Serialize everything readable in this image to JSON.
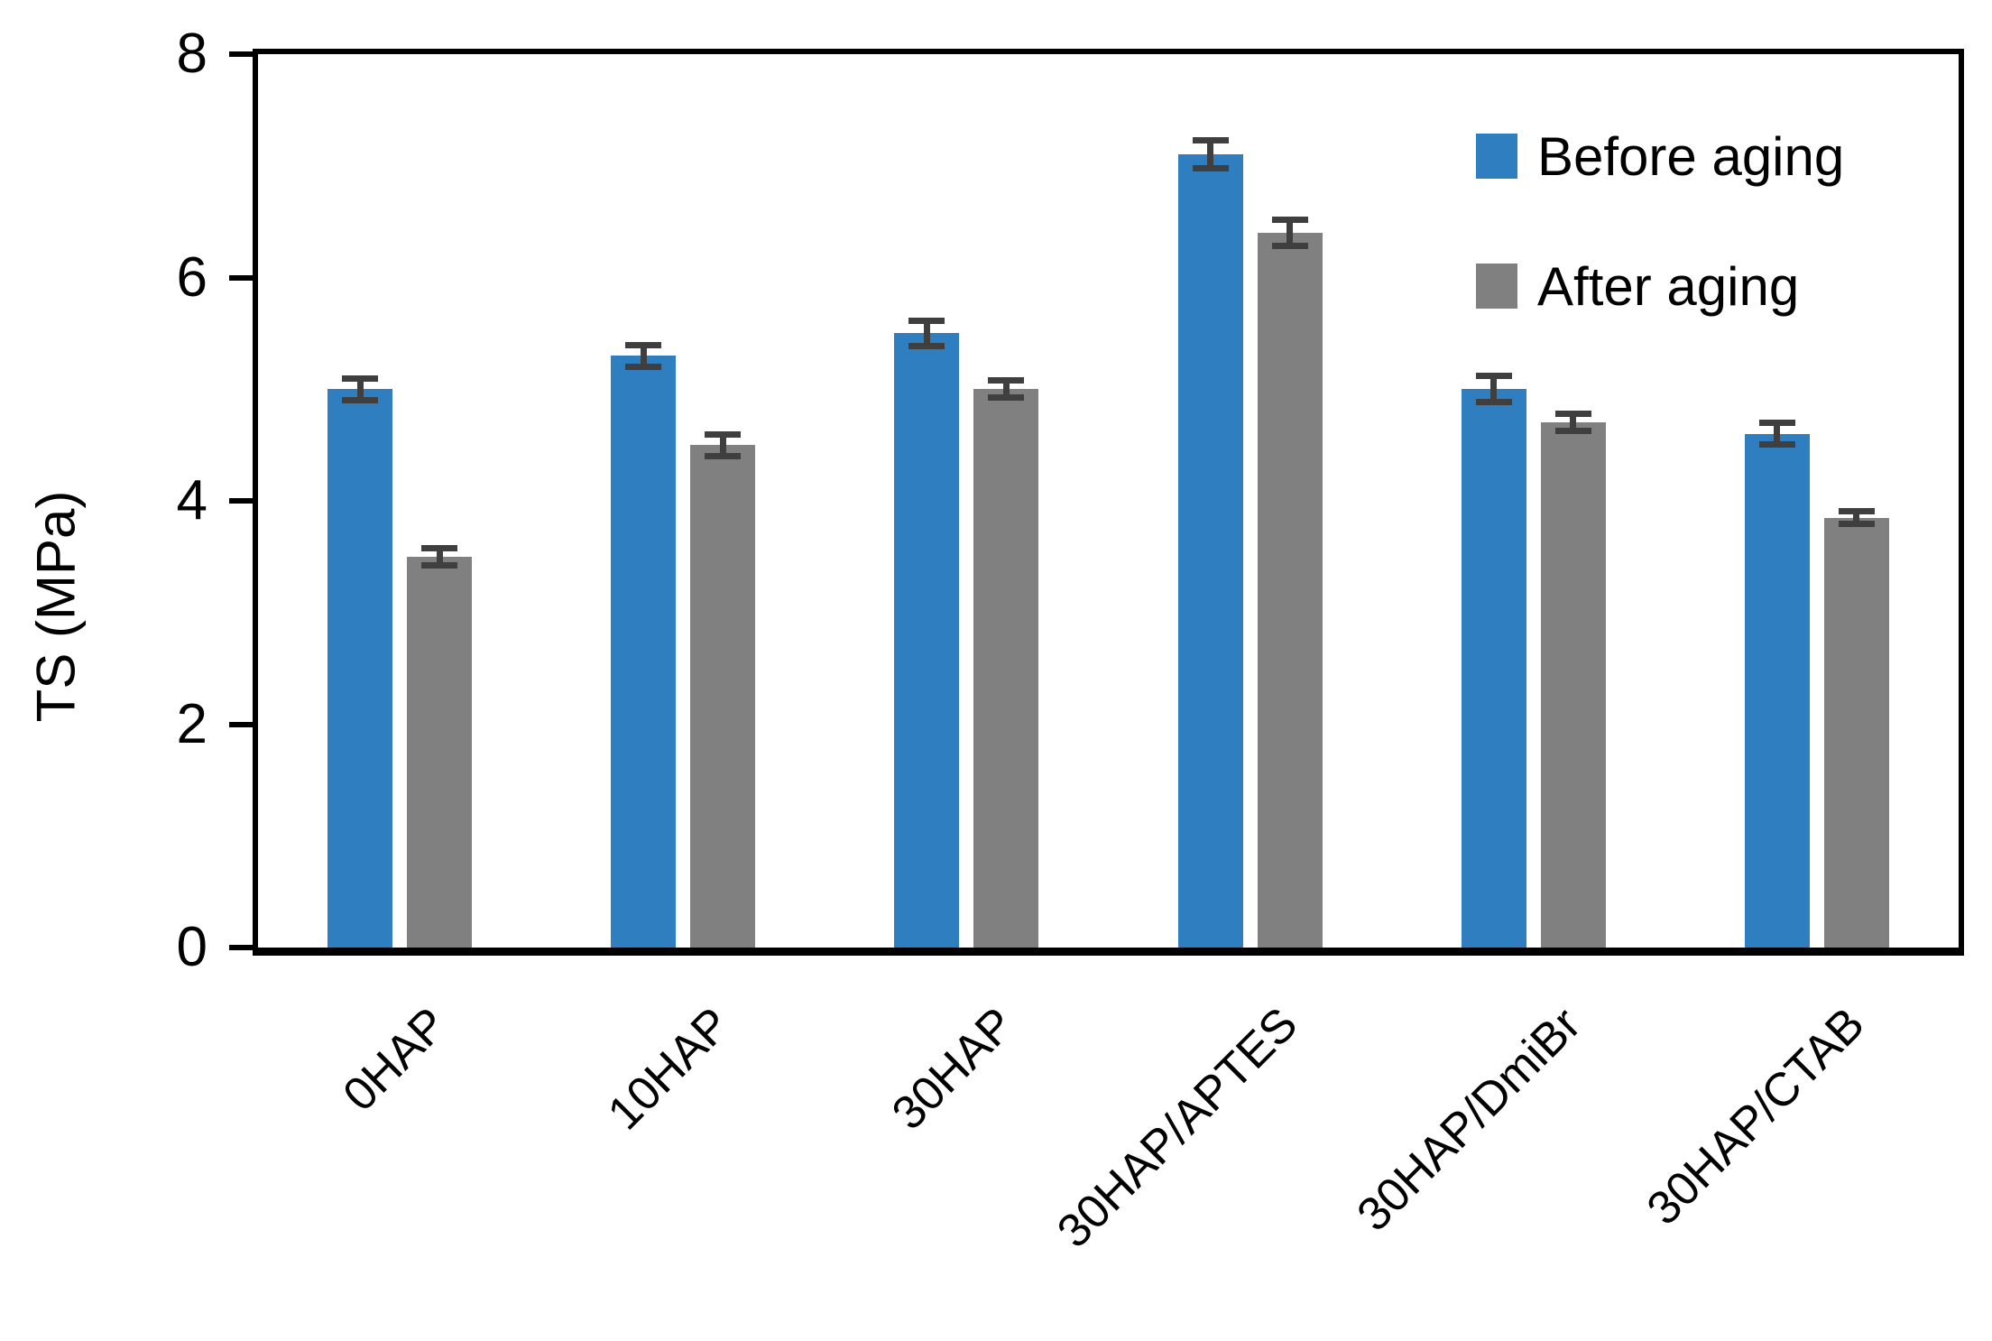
{
  "chart_data": {
    "type": "bar",
    "title": "",
    "xlabel": "",
    "ylabel": "TS (MPa)",
    "ylim": [
      0,
      8
    ],
    "yticks": [
      0,
      2,
      4,
      6,
      8
    ],
    "grid": false,
    "legend_position": "top-right-inside",
    "categories": [
      "0HAP",
      "10HAP",
      "30HAP",
      "30HAP/APTES",
      "30HAP/DmiBr",
      "30HAP/CTAB"
    ],
    "series": [
      {
        "name": "Before aging",
        "color": "#2E7EC0",
        "values": [
          5.0,
          5.3,
          5.5,
          7.1,
          5.0,
          4.6
        ],
        "errors": [
          0.1,
          0.1,
          0.12,
          0.13,
          0.12,
          0.1
        ]
      },
      {
        "name": "After aging",
        "color": "#808080",
        "values": [
          3.5,
          4.5,
          5.0,
          6.4,
          4.7,
          3.85
        ],
        "errors": [
          0.08,
          0.1,
          0.08,
          0.12,
          0.08,
          0.06
        ]
      }
    ],
    "error_bar_color": "#3f3f3f",
    "axis_color": "#000000"
  }
}
